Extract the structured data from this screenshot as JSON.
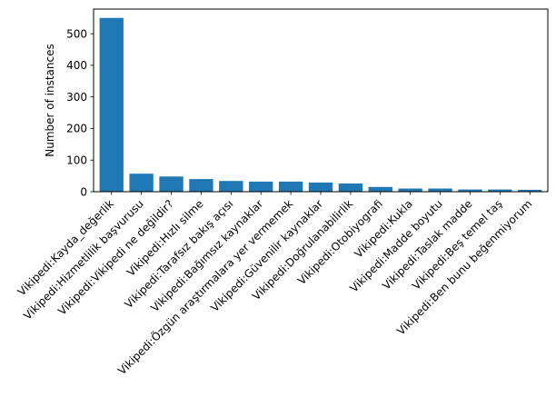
{
  "chart_data": {
    "type": "bar",
    "title": "",
    "xlabel": "",
    "ylabel": "Number of instances",
    "ylim": [
      0,
      578
    ],
    "yticks": [
      0,
      100,
      200,
      300,
      400,
      500
    ],
    "ytick_labels": [
      "0",
      "100",
      "200",
      "300",
      "400",
      "500"
    ],
    "grid": false,
    "bar_color": "#1f77b4",
    "categories": [
      "Vikipedi:Kayda_değerlik",
      "Vikipedi:Hizmetlilik başvurusu",
      "Vikipedi:Vikipedi ne değildir?",
      "Vikipedi:Hızlı silme",
      "Vikipedi:Tarafsız bakış açısı",
      "Vikipedi:Bağımsız kaynaklar",
      "Vikipedi:Özgün araştırmalara yer vermemek",
      "Vikipedi:Güvenilir kaynaklar",
      "Vikipedi:Doğrulanabilirlik",
      "Vikipedi:Otobiyografi",
      "Vikipedi:Kukla",
      "Vikipedi:Madde boyutu",
      "Vikipedi:Taslak madde",
      "Vikipedi:Beş temel taş",
      "Vikipedi:Ben bunu beğenmiyorum"
    ],
    "values": [
      550,
      57,
      48,
      40,
      34,
      32,
      32,
      29,
      26,
      15,
      10,
      10,
      7,
      7,
      6
    ]
  }
}
